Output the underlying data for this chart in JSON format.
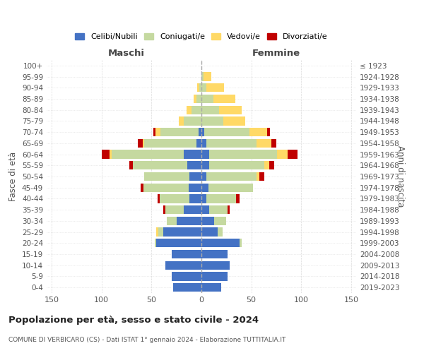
{
  "age_groups": [
    "0-4",
    "5-9",
    "10-14",
    "15-19",
    "20-24",
    "25-29",
    "30-34",
    "35-39",
    "40-44",
    "45-49",
    "50-54",
    "55-59",
    "60-64",
    "65-69",
    "70-74",
    "75-79",
    "80-84",
    "85-89",
    "90-94",
    "95-99",
    "100+"
  ],
  "birth_years": [
    "2019-2023",
    "2014-2018",
    "2009-2013",
    "2004-2008",
    "1999-2003",
    "1994-1998",
    "1989-1993",
    "1984-1988",
    "1979-1983",
    "1974-1978",
    "1969-1973",
    "1964-1968",
    "1959-1963",
    "1954-1958",
    "1949-1953",
    "1944-1948",
    "1939-1943",
    "1934-1938",
    "1929-1933",
    "1924-1928",
    "≤ 1923"
  ],
  "maschi": {
    "celibi": [
      28,
      30,
      36,
      30,
      45,
      38,
      25,
      18,
      12,
      13,
      12,
      14,
      18,
      5,
      3,
      0,
      0,
      0,
      0,
      0,
      0
    ],
    "coniugati": [
      0,
      0,
      0,
      0,
      2,
      5,
      10,
      18,
      30,
      45,
      45,
      55,
      72,
      52,
      38,
      18,
      10,
      5,
      2,
      0,
      0
    ],
    "vedovi": [
      0,
      0,
      0,
      0,
      0,
      2,
      0,
      0,
      0,
      0,
      0,
      0,
      2,
      2,
      5,
      5,
      5,
      3,
      2,
      0,
      0
    ],
    "divorziati": [
      0,
      0,
      0,
      0,
      0,
      0,
      0,
      2,
      2,
      3,
      0,
      3,
      8,
      5,
      2,
      0,
      0,
      0,
      0,
      0,
      0
    ]
  },
  "femmine": {
    "nubili": [
      20,
      26,
      28,
      26,
      38,
      16,
      13,
      8,
      5,
      7,
      5,
      8,
      8,
      5,
      3,
      0,
      0,
      0,
      0,
      0,
      0
    ],
    "coniugate": [
      0,
      0,
      0,
      0,
      2,
      5,
      12,
      18,
      30,
      45,
      50,
      55,
      68,
      50,
      45,
      22,
      18,
      12,
      5,
      2,
      0
    ],
    "vedove": [
      0,
      0,
      0,
      0,
      0,
      0,
      0,
      0,
      0,
      0,
      3,
      5,
      10,
      15,
      18,
      22,
      22,
      22,
      18,
      8,
      0
    ],
    "divorziate": [
      0,
      0,
      0,
      0,
      0,
      0,
      0,
      2,
      3,
      0,
      5,
      5,
      10,
      5,
      3,
      0,
      0,
      0,
      0,
      0,
      0
    ]
  },
  "colors": {
    "celibi_nubili": "#4472C4",
    "coniugati": "#C5D9A0",
    "vedovi": "#FFD966",
    "divorziati": "#C00000"
  },
  "title": "Popolazione per età, sesso e stato civile - 2024",
  "subtitle": "COMUNE DI VERBICARO (CS) - Dati ISTAT 1° gennaio 2024 - Elaborazione TUTTITALIA.IT",
  "xlabel_left": "Maschi",
  "xlabel_right": "Femmine",
  "ylabel_left": "Fasce di età",
  "ylabel_right": "Anni di nascita",
  "xlim": 155,
  "bg_color": "#ffffff",
  "grid_color": "#cccccc"
}
